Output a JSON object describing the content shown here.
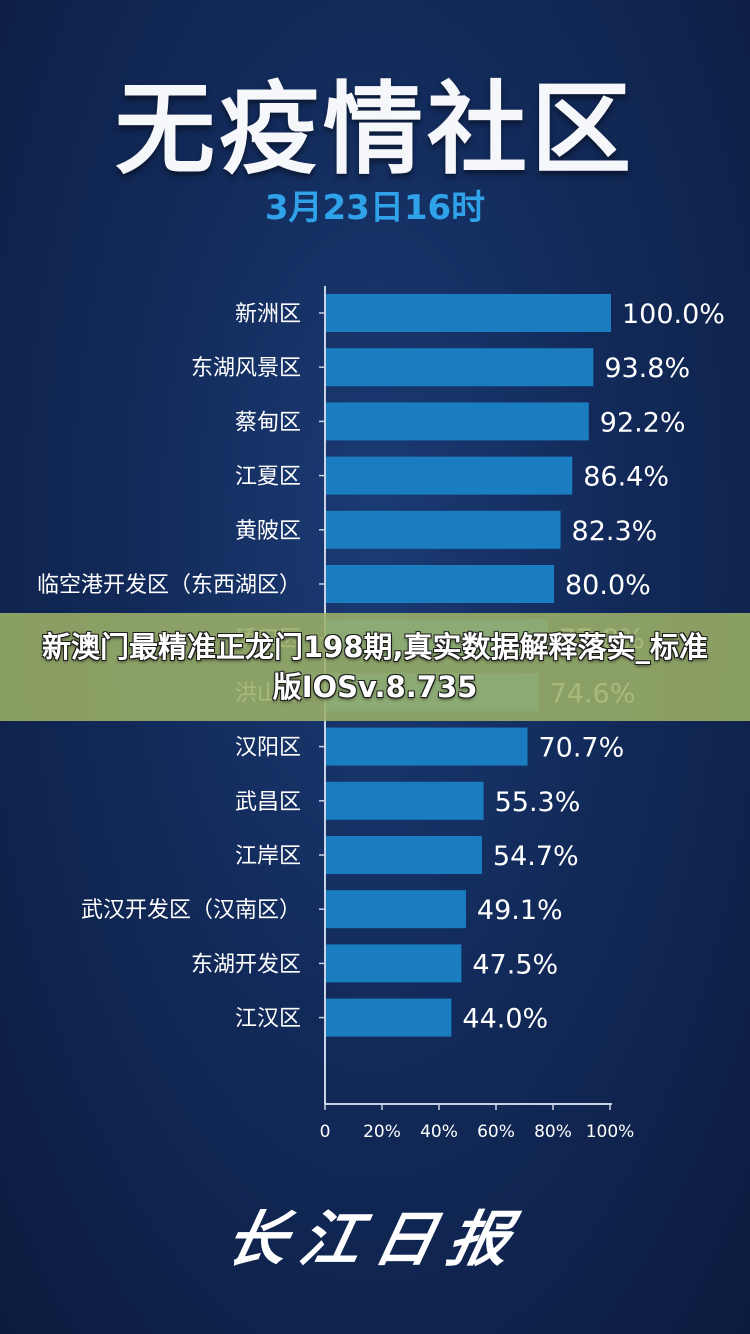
{
  "header": {
    "title": "无疫情社区",
    "subtitle": "3月23日16时"
  },
  "banner": {
    "text": "新澳门最精准正龙门198期,真实数据解释落实_标准版IOSv.8.735"
  },
  "logo": {
    "text": "长江日报"
  },
  "colors": {
    "bar": "#1a7dc0",
    "axis": "#c8d3e6",
    "accent": "#2fa2ea"
  },
  "chart_data": {
    "type": "bar",
    "orientation": "horizontal",
    "categories": [
      "新洲区",
      "东湖风景区",
      "蔡甸区",
      "江夏区",
      "黄陂区",
      "临空港开发区（东西湖区）",
      "硚口区",
      "洪山区",
      "汉阳区",
      "武昌区",
      "江岸区",
      "武汉开发区（汉南区）",
      "东湖开发区",
      "江汉区"
    ],
    "values": [
      100.0,
      93.8,
      92.2,
      86.4,
      82.3,
      80.0,
      77.8,
      74.6,
      70.7,
      55.3,
      54.7,
      49.1,
      47.5,
      44.0
    ],
    "value_labels": [
      "100.0%",
      "93.8%",
      "92.2%",
      "86.4%",
      "82.3%",
      "80.0%",
      "77.8%",
      "74.6%",
      "70.7%",
      "55.3%",
      "54.7%",
      "49.1%",
      "47.5%",
      "44.0%"
    ],
    "ticks": [
      0,
      20,
      40,
      60,
      80,
      100
    ],
    "tick_labels": [
      "0",
      "20%",
      "40%",
      "60%",
      "80%",
      "100%"
    ],
    "xlim": [
      0,
      100
    ],
    "grid": false,
    "legend": "none"
  }
}
